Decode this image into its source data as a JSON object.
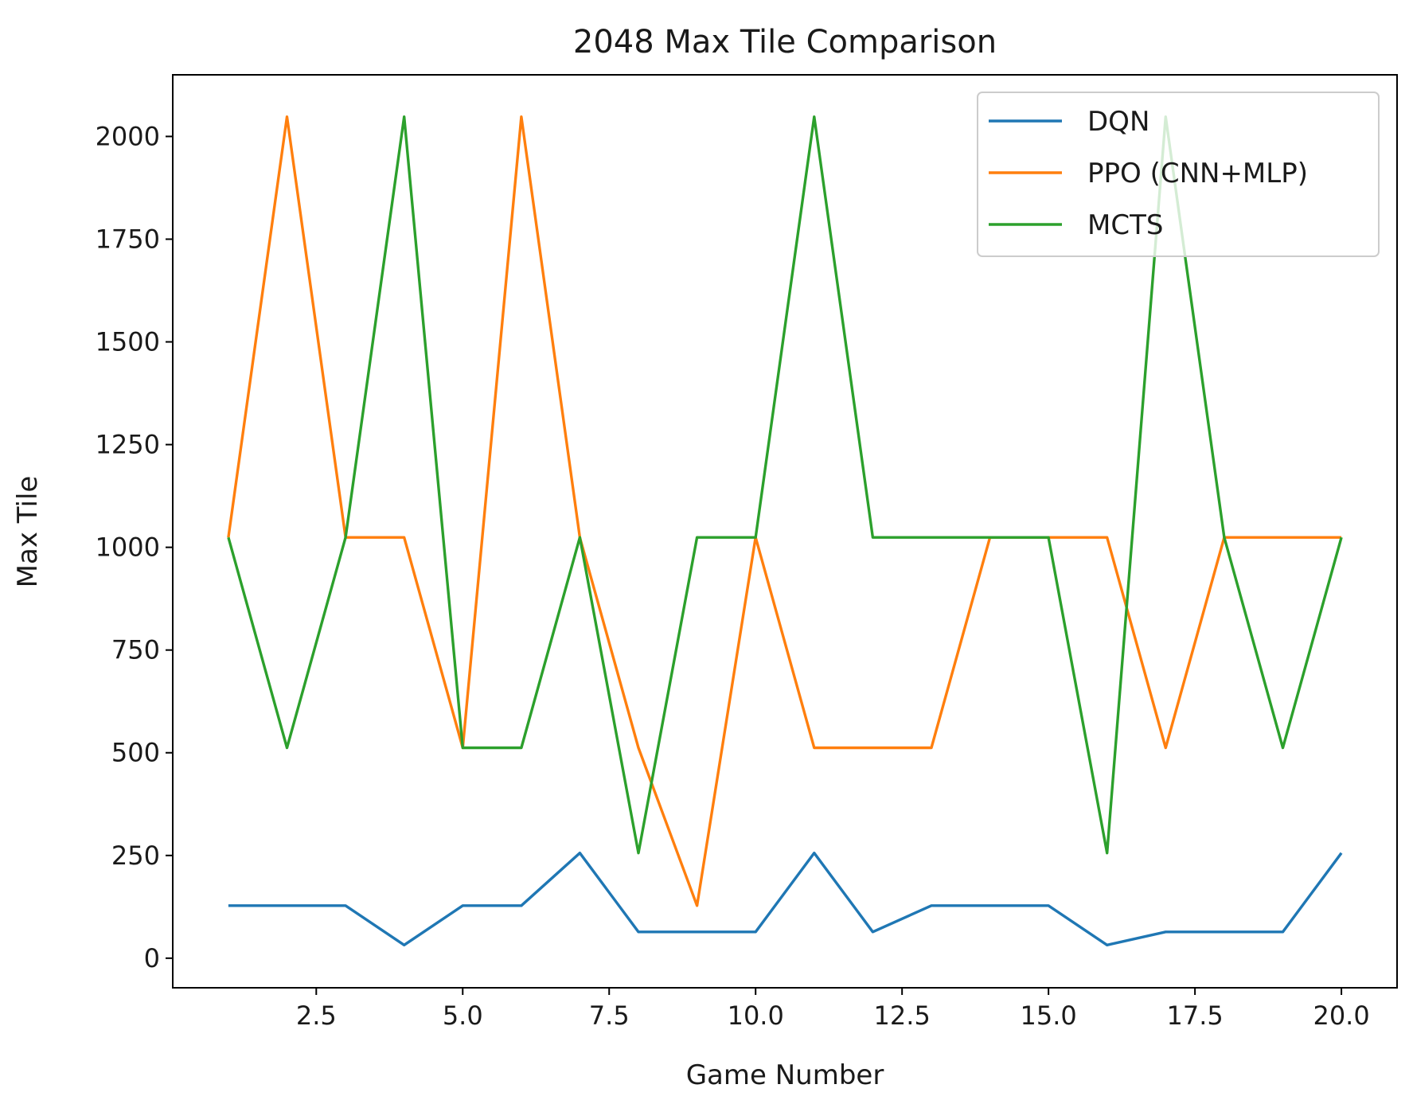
{
  "chart_data": {
    "type": "line",
    "title": "2048 Max Tile Comparison",
    "xlabel": "Game Number",
    "ylabel": "Max Tile",
    "xlim": [
      0.05,
      20.95
    ],
    "ylim": [
      -72,
      2150
    ],
    "xticks": [
      2.5,
      5.0,
      7.5,
      10.0,
      12.5,
      15.0,
      17.5,
      20.0
    ],
    "xtick_labels": [
      "2.5",
      "5.0",
      "7.5",
      "10.0",
      "12.5",
      "15.0",
      "17.5",
      "20.0"
    ],
    "yticks": [
      0,
      250,
      500,
      750,
      1000,
      1250,
      1500,
      1750,
      2000
    ],
    "ytick_labels": [
      "0",
      "250",
      "500",
      "750",
      "1000",
      "1250",
      "1500",
      "1750",
      "2000"
    ],
    "grid": false,
    "legend_position": "top-right",
    "x": [
      1,
      2,
      3,
      4,
      5,
      6,
      7,
      8,
      9,
      10,
      11,
      12,
      13,
      14,
      15,
      16,
      17,
      18,
      19,
      20
    ],
    "series": [
      {
        "name": "DQN",
        "color": "#1f77b4",
        "values": [
          128,
          128,
          128,
          32,
          128,
          128,
          256,
          64,
          64,
          64,
          256,
          64,
          128,
          128,
          128,
          32,
          64,
          64,
          64,
          256
        ]
      },
      {
        "name": "PPO (CNN+MLP)",
        "color": "#ff7f0e",
        "values": [
          1024,
          2048,
          1024,
          1024,
          512,
          2048,
          1024,
          512,
          128,
          1024,
          512,
          512,
          512,
          1024,
          1024,
          1024,
          512,
          1024,
          1024,
          1024
        ]
      },
      {
        "name": "MCTS",
        "color": "#2ca02c",
        "values": [
          1024,
          512,
          1024,
          2048,
          512,
          512,
          1024,
          256,
          1024,
          1024,
          2048,
          1024,
          1024,
          1024,
          1024,
          256,
          2048,
          1024,
          512,
          1024
        ]
      }
    ]
  }
}
